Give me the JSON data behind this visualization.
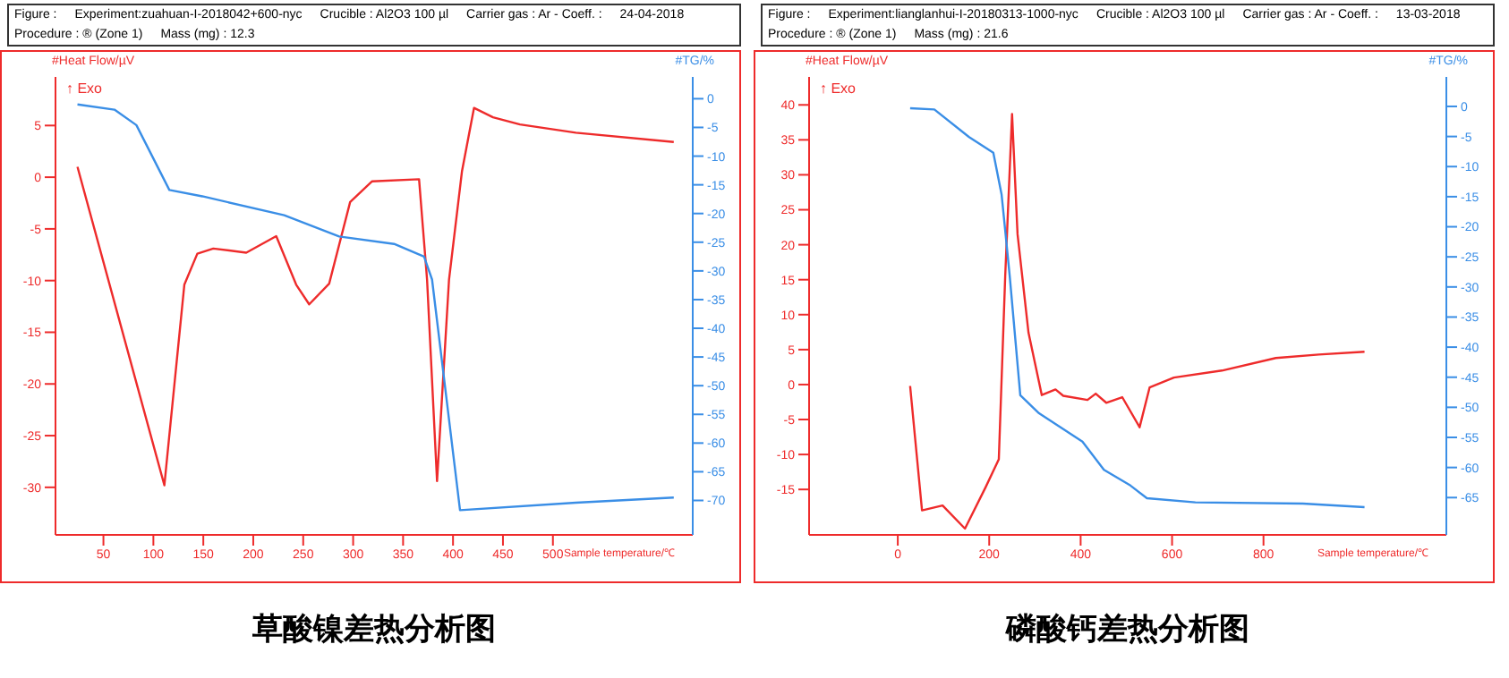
{
  "chart_data": [
    {
      "type": "line",
      "title": "草酸镍差热分析图",
      "xlabel": "Sample temperature/℃",
      "ylabel": "#Heat Flow/µV",
      "y2label": "#TG/%",
      "annotations": [
        "↑ Exo",
        "Figure :",
        "Experiment:zuahuan-I-2018042+600-nyc",
        "Crucible : Al2O3 100 µl",
        "Carrier gas : Ar - Coeff. :",
        "24-04-2018",
        "Procedure : ® (Zone 1)",
        "Mass (mg) : 12.3"
      ],
      "xlim": [
        2,
        640
      ],
      "xticks": [
        50,
        100,
        150,
        200,
        250,
        300,
        350,
        400,
        450,
        500
      ],
      "ylim": [
        -34.6,
        9.7
      ],
      "yticks": [
        -30,
        -25,
        -20,
        -15,
        -10,
        -5,
        0,
        5
      ],
      "y2lim": [
        -76,
        3.8
      ],
      "y2ticks": [
        -70,
        -65,
        -60,
        -55,
        -50,
        -45,
        -40,
        -35,
        -30,
        -25,
        -20,
        -15,
        -10,
        -5,
        0
      ],
      "series": [
        {
          "color": "#ee2b2b",
          "x": [
            24,
            111,
            131,
            144,
            160,
            193,
            223,
            243,
            256,
            276,
            297,
            319,
            366,
            374,
            384,
            396,
            409,
            421,
            440,
            467,
            523,
            621
          ],
          "values": [
            1.0,
            -29.8,
            -10.4,
            -7.4,
            -6.9,
            -7.3,
            -5.7,
            -10.4,
            -12.3,
            -10.3,
            -2.4,
            -0.4,
            -0.2,
            -9.9,
            -29.4,
            -9.9,
            0.6,
            6.7,
            5.8,
            5.1,
            4.3,
            3.4
          ]
        },
        {
          "color": "#3a8ee6",
          "axis": "y2",
          "x": [
            24,
            61,
            83,
            116,
            149,
            231,
            286,
            341,
            371,
            379,
            407,
            523,
            621
          ],
          "values": [
            -1.0,
            -1.9,
            -4.6,
            -15.9,
            -17,
            -20.3,
            -24,
            -25.3,
            -27.5,
            -31.5,
            -71.7,
            -70.4,
            -69.5
          ]
        }
      ]
    },
    {
      "type": "line",
      "title": "磷酸钙差热分析图",
      "xlabel": "Sample temperature/℃",
      "ylabel": "#Heat Flow/µV",
      "y2label": "#TG/%",
      "annotations": [
        "↑ Exo",
        "Figure :",
        "Experiment:lianglanhui-I-20180313-1000-nyc",
        "Crucible : Al2O3 100 µl",
        "Carrier gas : Ar - Coeff. :",
        "13-03-2018",
        "Procedure : ® (Zone 1)",
        "Mass (mg) : 21.6"
      ],
      "xlim": [
        -194,
        1200
      ],
      "xticks": [
        0,
        200,
        400,
        600,
        800
      ],
      "ylim": [
        -21.5,
        44
      ],
      "yticks": [
        -15,
        -10,
        -5,
        0,
        5,
        10,
        15,
        20,
        25,
        30,
        35,
        40
      ],
      "y2lim": [
        -71.2,
        4.9
      ],
      "y2ticks": [
        -65,
        -60,
        -55,
        -50,
        -45,
        -40,
        -35,
        -30,
        -25,
        -20,
        -15,
        -10,
        -5,
        0
      ],
      "series": [
        {
          "color": "#ee2b2b",
          "x": [
            27,
            53,
            98,
            147,
            192,
            221,
            235,
            250,
            262,
            286,
            315,
            345,
            362,
            415,
            433,
            456,
            491,
            529,
            551,
            604,
            709,
            827,
            921,
            1021
          ],
          "values": [
            -0.2,
            -18.0,
            -17.3,
            -20.6,
            -14.7,
            -10.7,
            15.5,
            38.7,
            21.5,
            7.4,
            -1.5,
            -0.7,
            -1.6,
            -2.2,
            -1.3,
            -2.6,
            -1.8,
            -6.1,
            -0.4,
            1.0,
            2.0,
            3.8,
            4.3,
            4.7
          ]
        },
        {
          "color": "#3a8ee6",
          "axis": "y2",
          "x": [
            27,
            80,
            156,
            209,
            227,
            235,
            245,
            268,
            309,
            404,
            451,
            509,
            545,
            651,
            886,
            1021
          ],
          "values": [
            -0.3,
            -0.5,
            -5.1,
            -7.7,
            -14.6,
            -20.6,
            -28.3,
            -48,
            -51,
            -55.7,
            -60.4,
            -63,
            -65.1,
            -65.8,
            -66,
            -66.6
          ]
        }
      ]
    }
  ]
}
